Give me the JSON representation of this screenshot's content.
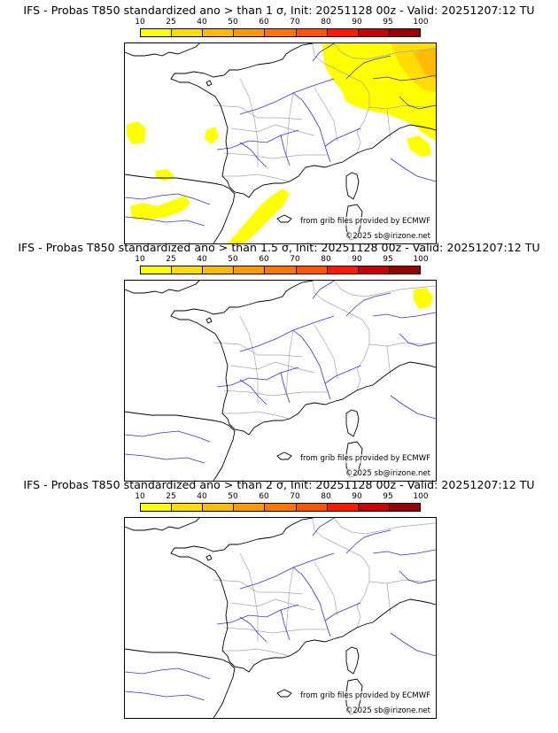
{
  "colors": {
    "scale": [
      "#ffff00",
      "#ffdd00",
      "#ffbb00",
      "#ff9900",
      "#ff7700",
      "#ff5500",
      "#ff1a00",
      "#cc0000",
      "#990000",
      "#660000"
    ],
    "coast": "#000000",
    "rivers": "#3333cc",
    "borders": "#a6a6a6"
  },
  "colorbar": {
    "ticks": [
      "10",
      "25",
      "40",
      "50",
      "60",
      "70",
      "80",
      "90",
      "95",
      "100"
    ]
  },
  "panels": [
    {
      "title": "IFS - Probas T850  standardized ano > than 1 σ, Init: 20251128 00z - Valid: 20251207:12 TU",
      "credit": "from grib files provided by ECMWF",
      "copyright": "©2025 sb@irizone.net",
      "coverage": "yellow-orange over north-east, Alps, Bay of Biscay patches and Gulf of Lion / western Mediterranean"
    },
    {
      "title": "IFS - Probas T850  standardized ano > than 1.5 σ, Init: 20251128 00z - Valid: 20251207:12 TU",
      "credit": "from grib files provided by ECMWF",
      "copyright": "©2025 sb@irizone.net",
      "coverage": "small yellow patch near Switzerland"
    },
    {
      "title": "IFS - Probas T850  standardized ano > than 2 σ, Init: 20251128 00z - Valid: 20251207:12 TU",
      "credit": "from grib files provided by ECMWF",
      "copyright": "©2025 sb@irizone.net",
      "coverage": "none"
    }
  ]
}
